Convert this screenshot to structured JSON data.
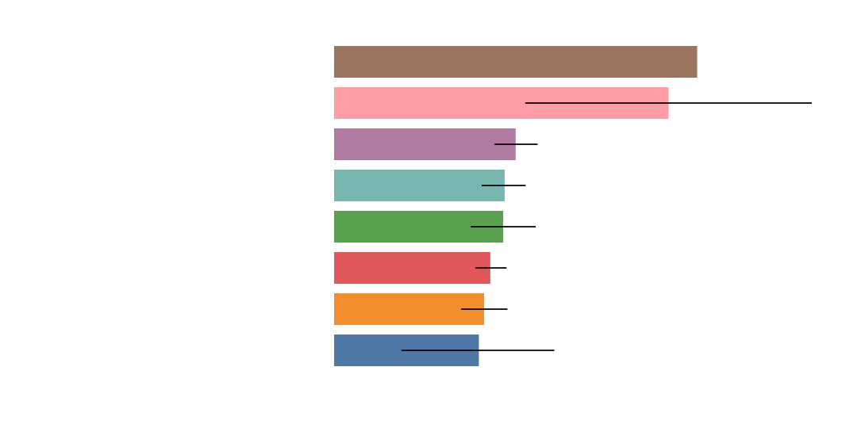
{
  "chart_data": {
    "type": "bar",
    "orientation": "horizontal",
    "title": "",
    "xlabel": "",
    "ylabel": "",
    "axes_visible": false,
    "grid": false,
    "xlim": [
      0,
      100
    ],
    "bars": [
      {
        "value": 76.0,
        "error_low": null,
        "error_high": null,
        "color": "#9c755f"
      },
      {
        "value": 70.0,
        "error_low": 40.0,
        "error_high": 100.0,
        "color": "#ff9da7"
      },
      {
        "value": 38.0,
        "error_low": 33.6,
        "error_high": 42.6,
        "color": "#b07aa1"
      },
      {
        "value": 35.7,
        "error_low": 30.9,
        "error_high": 40.1,
        "color": "#76b7b2"
      },
      {
        "value": 35.4,
        "error_low": 28.6,
        "error_high": 42.2,
        "color": "#59a14f"
      },
      {
        "value": 32.7,
        "error_low": 29.6,
        "error_high": 36.1,
        "color": "#e15759"
      },
      {
        "value": 31.4,
        "error_low": 26.6,
        "error_high": 36.3,
        "color": "#f28e2b"
      },
      {
        "value": 30.3,
        "error_low": 14.1,
        "error_high": 46.1,
        "color": "#4e79a7"
      }
    ]
  }
}
